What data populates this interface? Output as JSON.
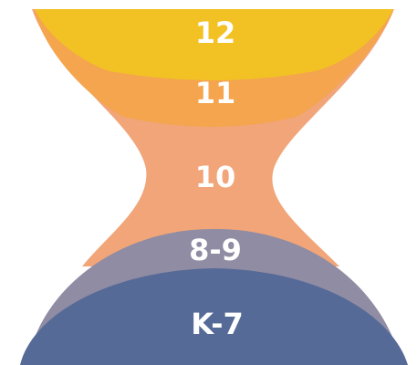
{
  "diagram": {
    "layers": [
      {
        "id": "grade-12",
        "label": "12",
        "color": "#F2C224"
      },
      {
        "id": "grade-11",
        "label": "11",
        "color": "#F4A54E"
      },
      {
        "id": "grade-10",
        "label": "10",
        "color": "#F1A579"
      },
      {
        "id": "grade-8-9",
        "label": "8-9",
        "color": "#8F8CA3"
      },
      {
        "id": "grade-k-7",
        "label": "K-7",
        "color": "#566A97"
      }
    ]
  }
}
